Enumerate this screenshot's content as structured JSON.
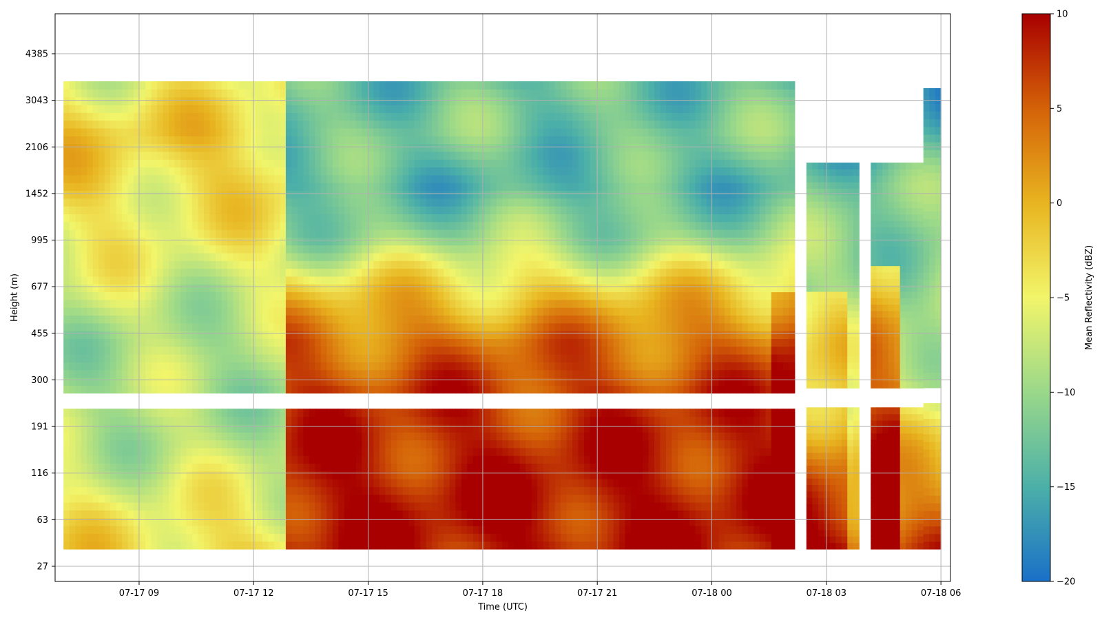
{
  "chart_data": {
    "type": "heatmap",
    "xlabel": "Time (UTC)",
    "ylabel": "Height (m)",
    "x_ticks": [
      "07-17 09",
      "07-17 12",
      "07-17 15",
      "07-17 18",
      "07-17 21",
      "07-18 00",
      "07-18 03",
      "07-18 06"
    ],
    "x_tick_hours": [
      2,
      5,
      8,
      11,
      14,
      17,
      20,
      23
    ],
    "xlim_hours": [
      -0.2,
      23.25
    ],
    "y_ticks": [
      "27",
      "63",
      "116",
      "191",
      "300",
      "455",
      "677",
      "995",
      "1452",
      "2106",
      "3043",
      "4385"
    ],
    "colorbar": {
      "label": "Mean Reflectivity (dBZ)",
      "ticks": [
        "10",
        "5",
        "0",
        "−5",
        "−10",
        "−15",
        "−20"
      ],
      "vmin": -20,
      "vmax": 10,
      "colormap": [
        "#1a70c8",
        "#4cb0a8",
        "#9ad88a",
        "#f2f56a",
        "#e8b420",
        "#d46208",
        "#a80000"
      ]
    },
    "missing_bands": {
      "height_gap_m": [
        218,
        272
      ],
      "time_gaps_hours": [
        [
          19.2,
          19.4
        ],
        [
          20.8,
          21.1
        ]
      ]
    },
    "mean_profile_dbz": {
      "early_period": [
        -3,
        -6,
        -8,
        -9,
        -9,
        -7,
        -5,
        -3,
        -2,
        -5
      ],
      "afternoon_period": [
        9,
        9,
        8,
        7,
        4,
        -2,
        -10,
        -14,
        -12,
        -13
      ],
      "night_period": [
        6,
        2,
        -2,
        -6,
        -8,
        -10,
        -11,
        -12,
        -15,
        -17
      ]
    }
  }
}
